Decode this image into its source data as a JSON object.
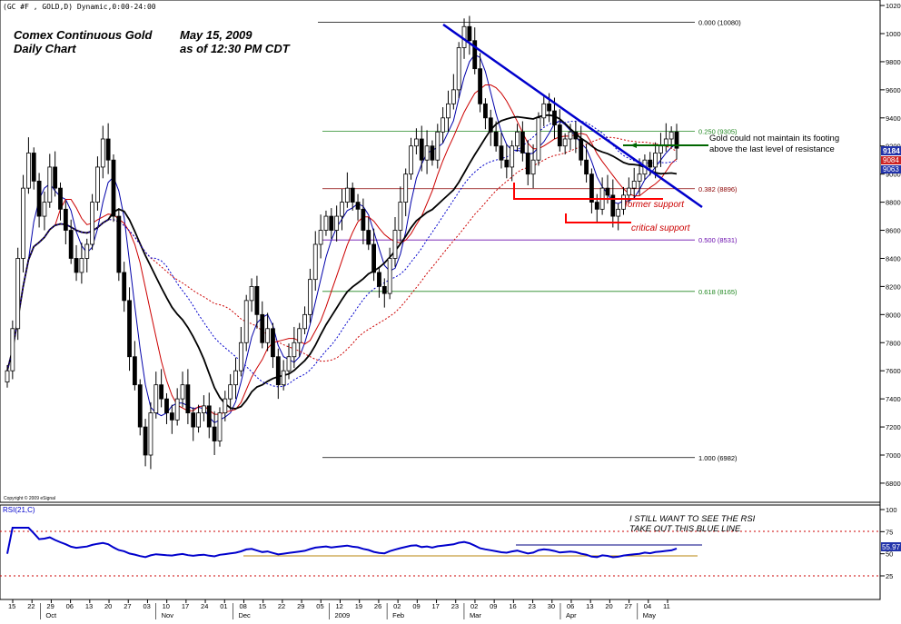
{
  "header": {
    "symbol_text": "(GC #F , GOLD,D) Dynamic,0:00-24:00",
    "title_line1": "Comex Continuous Gold",
    "title_line2": "Daily Chart",
    "date_line1": "May 15, 2009",
    "date_line2": "as of  12:30 PM CDT",
    "copyright": "Copyright © 2009 eSignal"
  },
  "colors": {
    "background": "#ffffff",
    "candle": "#000000",
    "ma_fast": "#0000aa",
    "ma_red": "#cc0000",
    "ma_black": "#000000",
    "ma_slow_red": "#cc0000",
    "ma_slow_blue": "#0000cc",
    "trendline": "#0000cc",
    "support_line": "#ff0000",
    "resistance_line": "#006600",
    "rsi_line": "#0000cc",
    "rsi_support": "#b8860b",
    "rsi_resistance": "#000080",
    "annotation_text": "#cc0000"
  },
  "price_labels": {
    "last": "9184",
    "ma_a": "9084",
    "ma_b": "9063"
  },
  "rsi_label": "55.97",
  "annotations": {
    "resistance_note_line1": "Gold could not maintain its footing",
    "resistance_note_line2": "above the last level of resistance",
    "former_support": "former support",
    "critical_support": "critical support",
    "rsi_note_line1": "I STILL WANT TO SEE THE RSI",
    "rsi_note_line2": "TAKE OUT THIS BLUE LINE"
  },
  "chart_data": [
    {
      "type": "candlestick",
      "title": "Comex Continuous Gold Daily Chart",
      "y_unit": "price x10 (9184 = $918.40)",
      "ylim": [
        6700,
        10200
      ],
      "y_ticks": [
        "6800",
        "7000",
        "7200",
        "7400",
        "7600",
        "7800",
        "8000",
        "8200",
        "8400",
        "8600",
        "8800",
        "9000",
        "9200",
        "9400",
        "9600",
        "9800",
        "10000",
        "10200"
      ],
      "x_tick_labels": [
        "15",
        "22",
        "29",
        "06",
        "13",
        "20",
        "27",
        "03",
        "10",
        "17",
        "24",
        "01",
        "08",
        "15",
        "22",
        "29",
        "05",
        "12",
        "19",
        "26",
        "02",
        "09",
        "17",
        "23",
        "02",
        "09",
        "16",
        "23",
        "30",
        "06",
        "13",
        "20",
        "27",
        "04",
        "11"
      ],
      "month_labels": [
        "Oct",
        "Nov",
        "Dec",
        "2009",
        "Feb",
        "Mar",
        "Apr",
        "May"
      ],
      "fibonacci_levels": [
        {
          "label": "0.000 (10080)",
          "value": 10080
        },
        {
          "label": "0.250 (9305)",
          "value": 9305
        },
        {
          "label": "0.382 (8896)",
          "value": 8896
        },
        {
          "label": "0.500 (8531)",
          "value": 8531
        },
        {
          "label": "0.618 (8165)",
          "value": 8165
        },
        {
          "label": "1.000 (6982)",
          "value": 6982
        }
      ],
      "closes": [
        7600,
        7900,
        8400,
        8900,
        9150,
        8950,
        8700,
        8800,
        9050,
        8900,
        8750,
        8600,
        8400,
        8300,
        8400,
        8500,
        8800,
        9050,
        9250,
        9100,
        8700,
        8300,
        8100,
        7700,
        7500,
        7200,
        7000,
        7300,
        7500,
        7400,
        7300,
        7250,
        7400,
        7500,
        7300,
        7200,
        7300,
        7350,
        7200,
        7100,
        7300,
        7400,
        7500,
        7600,
        7800,
        8100,
        8200,
        8000,
        7800,
        7900,
        7700,
        7500,
        7600,
        7700,
        7800,
        7900,
        8000,
        8250,
        8500,
        8600,
        8700,
        8600,
        8700,
        8800,
        8900,
        8800,
        8750,
        8600,
        8500,
        8300,
        8200,
        8150,
        8400,
        8600,
        8800,
        9000,
        9200,
        9250,
        9100,
        9200,
        9100,
        9300,
        9400,
        9500,
        9600,
        9900,
        10050,
        9950,
        9750,
        9500,
        9400,
        9300,
        9200,
        9100,
        9050,
        9200,
        9300,
        9150,
        9000,
        9100,
        9400,
        9500,
        9450,
        9350,
        9200,
        9250,
        9300,
        9250,
        9100,
        9000,
        8800,
        8750,
        8900,
        8850,
        8700,
        8750,
        8850,
        8900,
        8950,
        9000,
        9100,
        9050,
        9150,
        9200,
        9250,
        9300,
        9184
      ],
      "moving_averages": [
        "fast (blue)",
        "red",
        "black",
        "slow red dotted",
        "slow blue dotted"
      ]
    },
    {
      "type": "line",
      "title": "RSI(21,C)",
      "ylim": [
        0,
        100
      ],
      "y_ticks": [
        "25",
        "50",
        "75",
        "100"
      ],
      "last_value": 55.97,
      "reference_levels": [
        25,
        75
      ]
    }
  ]
}
